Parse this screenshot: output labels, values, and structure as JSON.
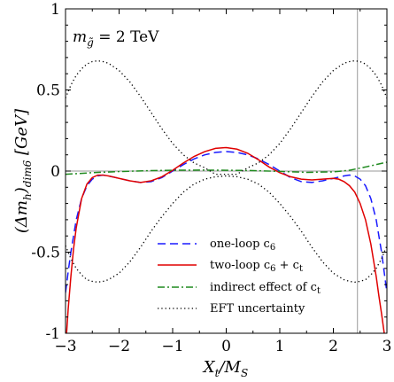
{
  "chart_data": {
    "type": "line",
    "annotation": "m_g̃ = 2 TeV",
    "annotation_parts": {
      "symbol": "m",
      "subscript": "g̃",
      "value": " = 2 TeV"
    },
    "xlabel": "X_t/M_S",
    "xlabel_parts": {
      "main": "X",
      "sub1": "t",
      "slash": "/M",
      "sub2": "S"
    },
    "ylabel": "(Δm_h)_dim6 [GeV]",
    "ylabel_parts": {
      "open": "(Δm",
      "sub1": "h",
      "close": ")",
      "sub2": "dim6",
      "unit": " [GeV]"
    },
    "xlim": [
      -3,
      3
    ],
    "ylim": [
      -1,
      1
    ],
    "x_ticks": [
      -3,
      -2,
      -1,
      0,
      1,
      2,
      3
    ],
    "x_tick_labels": [
      "−3",
      "−2",
      "−1",
      "0",
      "1",
      "2",
      "3"
    ],
    "y_ticks": [
      -1,
      -0.5,
      0,
      0.5,
      1
    ],
    "y_tick_labels": [
      "-1",
      "-0.5",
      "0",
      "0.5",
      "1"
    ],
    "reference_lines": {
      "horizontal_y": 0,
      "vertical_x": 2.45
    },
    "colors": {
      "one_loop": "#1a1aff",
      "two_loop": "#e00000",
      "indirect": "#1f8a1f",
      "uncertainty": "#000000",
      "reference": "#999999"
    },
    "legend": {
      "position": "lower-center",
      "entries": [
        {
          "key": "one_loop",
          "text": "one-loop c₆",
          "parts": {
            "main": "one-loop c",
            "sub": "6",
            "tail": ""
          }
        },
        {
          "key": "two_loop",
          "text": "two-loop c₆ + c_t",
          "parts": {
            "main": "two-loop c",
            "sub": "6",
            "tail": " + c",
            "sub2": "t"
          }
        },
        {
          "key": "indirect",
          "text": "indirect effect of c_t",
          "parts": {
            "main": "indirect effect of c",
            "sub": "t",
            "tail": ""
          }
        },
        {
          "key": "uncertainty",
          "text": "EFT uncertainty",
          "parts": {
            "main": "EFT uncertainty",
            "sub": "",
            "tail": ""
          }
        }
      ]
    },
    "series": [
      {
        "key": "one_loop",
        "style": "dashed",
        "x": [
          -3.0,
          -2.95,
          -2.9,
          -2.8,
          -2.7,
          -2.6,
          -2.5,
          -2.4,
          -2.3,
          -2.2,
          -2.0,
          -1.8,
          -1.6,
          -1.4,
          -1.2,
          -1.0,
          -0.8,
          -0.6,
          -0.4,
          -0.2,
          0.0,
          0.2,
          0.4,
          0.6,
          0.8,
          1.0,
          1.2,
          1.4,
          1.6,
          1.8,
          2.0,
          2.2,
          2.3,
          2.4,
          2.5,
          2.6,
          2.7,
          2.8,
          2.9,
          3.0
        ],
        "y": [
          -0.75,
          -0.62,
          -0.5,
          -0.3,
          -0.17,
          -0.09,
          -0.05,
          -0.03,
          -0.025,
          -0.03,
          -0.045,
          -0.06,
          -0.07,
          -0.065,
          -0.04,
          0.0,
          0.04,
          0.075,
          0.1,
          0.115,
          0.12,
          0.115,
          0.1,
          0.075,
          0.04,
          0.0,
          -0.04,
          -0.065,
          -0.07,
          -0.06,
          -0.045,
          -0.03,
          -0.025,
          -0.03,
          -0.05,
          -0.09,
          -0.17,
          -0.3,
          -0.5,
          -0.75
        ]
      },
      {
        "key": "two_loop",
        "style": "solid",
        "x": [
          -2.98,
          -2.95,
          -2.9,
          -2.85,
          -2.8,
          -2.7,
          -2.6,
          -2.5,
          -2.4,
          -2.3,
          -2.2,
          -2.0,
          -1.8,
          -1.6,
          -1.4,
          -1.2,
          -1.0,
          -0.8,
          -0.6,
          -0.4,
          -0.2,
          0.0,
          0.2,
          0.4,
          0.6,
          0.8,
          1.0,
          1.2,
          1.4,
          1.6,
          1.8,
          2.0,
          2.1,
          2.2,
          2.3,
          2.4,
          2.5,
          2.6,
          2.7,
          2.75,
          2.8,
          2.85,
          2.9,
          2.95
        ],
        "y": [
          -1.0,
          -0.85,
          -0.65,
          -0.48,
          -0.35,
          -0.17,
          -0.08,
          -0.04,
          -0.025,
          -0.025,
          -0.03,
          -0.045,
          -0.06,
          -0.07,
          -0.06,
          -0.035,
          0.005,
          0.05,
          0.09,
          0.12,
          0.14,
          0.145,
          0.135,
          0.11,
          0.07,
          0.025,
          -0.01,
          -0.035,
          -0.05,
          -0.055,
          -0.05,
          -0.045,
          -0.05,
          -0.065,
          -0.09,
          -0.13,
          -0.2,
          -0.3,
          -0.45,
          -0.55,
          -0.65,
          -0.77,
          -0.88,
          -1.0
        ]
      },
      {
        "key": "indirect",
        "style": "dashdot",
        "x": [
          -3.0,
          -2.5,
          -2.0,
          -1.5,
          -1.0,
          -0.5,
          0.0,
          0.5,
          1.0,
          1.5,
          2.0,
          2.3,
          2.6,
          2.8,
          3.0
        ],
        "y": [
          -0.02,
          -0.01,
          -0.003,
          0.002,
          0.005,
          0.006,
          0.005,
          0.003,
          -0.002,
          -0.008,
          -0.005,
          0.005,
          0.025,
          0.04,
          0.055
        ]
      },
      {
        "key": "uncertainty",
        "style": "dotted",
        "x": [
          -3.0,
          -2.9,
          -2.8,
          -2.7,
          -2.6,
          -2.5,
          -2.4,
          -2.3,
          -2.2,
          -2.0,
          -1.8,
          -1.6,
          -1.4,
          -1.2,
          -1.0,
          -0.8,
          -0.6,
          -0.4,
          -0.2,
          0.0,
          0.2,
          0.4,
          0.6,
          0.8,
          1.0,
          1.2,
          1.4,
          1.6,
          1.8,
          2.0,
          2.2,
          2.3,
          2.4,
          2.5,
          2.6,
          2.7,
          2.8,
          2.9,
          3.0
        ],
        "y": [
          0.45,
          0.53,
          0.59,
          0.63,
          0.66,
          0.675,
          0.68,
          0.675,
          0.665,
          0.62,
          0.55,
          0.46,
          0.36,
          0.26,
          0.17,
          0.1,
          0.05,
          0.02,
          -0.02,
          -0.02,
          -0.02,
          0.02,
          0.05,
          0.1,
          0.17,
          0.26,
          0.36,
          0.46,
          0.55,
          0.62,
          0.665,
          0.675,
          0.68,
          0.675,
          0.66,
          0.63,
          0.59,
          0.53,
          0.45
        ]
      },
      {
        "key": "uncertainty",
        "style": "dotted",
        "x": [
          -3.0,
          -2.9,
          -2.8,
          -2.7,
          -2.6,
          -2.5,
          -2.4,
          -2.3,
          -2.2,
          -2.0,
          -1.8,
          -1.6,
          -1.4,
          -1.2,
          -1.0,
          -0.8,
          -0.6,
          -0.4,
          -0.2,
          0.0,
          0.2,
          0.4,
          0.6,
          0.8,
          1.0,
          1.2,
          1.4,
          1.6,
          1.8,
          2.0,
          2.2,
          2.3,
          2.4,
          2.5,
          2.6,
          2.7,
          2.8,
          2.9,
          3.0
        ],
        "y": [
          -0.46,
          -0.54,
          -0.6,
          -0.64,
          -0.67,
          -0.68,
          -0.685,
          -0.68,
          -0.67,
          -0.63,
          -0.56,
          -0.47,
          -0.37,
          -0.28,
          -0.2,
          -0.13,
          -0.08,
          -0.05,
          -0.035,
          -0.03,
          -0.035,
          -0.05,
          -0.08,
          -0.13,
          -0.2,
          -0.28,
          -0.37,
          -0.47,
          -0.56,
          -0.63,
          -0.67,
          -0.68,
          -0.685,
          -0.68,
          -0.67,
          -0.64,
          -0.6,
          -0.54,
          -0.46
        ]
      }
    ]
  }
}
